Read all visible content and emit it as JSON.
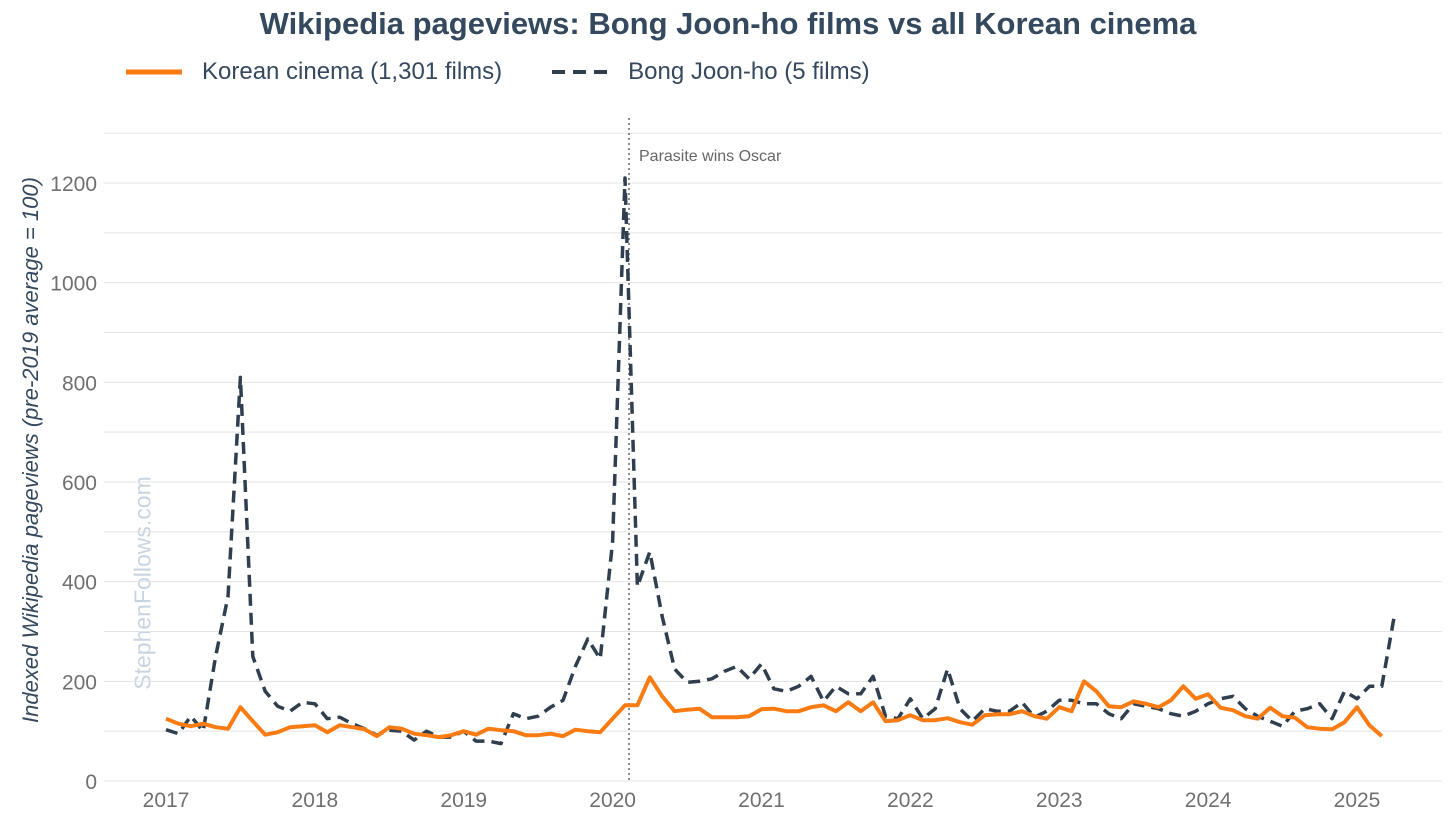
{
  "chart_data": {
    "type": "line",
    "title": "Wikipedia pageviews: Bong Joon-ho films vs all Korean cinema",
    "xlabel": "",
    "ylabel": "Indexed Wikipedia pageviews (pre-2019 average = 100)",
    "ylim": [
      0,
      1300
    ],
    "yticks": [
      0,
      200,
      400,
      600,
      800,
      1000,
      1200
    ],
    "xlim": [
      2016.75,
      2025.65
    ],
    "xticks": [
      2017,
      2018,
      2019,
      2020,
      2021,
      2022,
      2023,
      2024,
      2025
    ],
    "grid": true,
    "legend_position": "top-left",
    "watermark": "StephenFollows.com",
    "colors": {
      "korean": "#f97b12",
      "bong": "#2f3f4f",
      "text": "#34495e",
      "grid": "#e3e3e3",
      "tick": "#707070"
    },
    "annotation": {
      "x": 2020.11,
      "label": "Parasite wins Oscar"
    },
    "series": [
      {
        "name": "Korean cinema (1,301 films)",
        "style": "solid",
        "start_year": 2017.0,
        "step": 0.08333,
        "values": [
          125,
          115,
          110,
          115,
          108,
          105,
          148,
          120,
          93,
          98,
          108,
          110,
          112,
          98,
          112,
          108,
          104,
          90,
          108,
          105,
          95,
          92,
          88,
          92,
          100,
          93,
          105,
          102,
          100,
          92,
          92,
          95,
          90,
          103,
          100,
          98,
          125,
          152,
          152,
          208,
          170,
          140,
          143,
          145,
          128,
          128,
          128,
          130,
          144,
          145,
          140,
          140,
          148,
          152,
          140,
          158,
          140,
          158,
          120,
          122,
          132,
          122,
          122,
          126,
          118,
          113,
          132,
          134,
          134,
          140,
          130,
          125,
          148,
          140,
          200,
          180,
          150,
          148,
          160,
          155,
          148,
          162,
          190,
          165,
          174,
          147,
          142,
          130,
          125,
          147,
          130,
          127,
          108,
          105,
          104,
          118,
          148,
          112,
          90
        ]
      },
      {
        "name": "Bong Joon-ho (5 films)",
        "style": "dashed",
        "start_year": 2017.0,
        "step": 0.08333,
        "values": [
          103,
          95,
          130,
          100,
          250,
          370,
          810,
          250,
          180,
          150,
          140,
          158,
          155,
          125,
          128,
          115,
          105,
          92,
          102,
          100,
          82,
          100,
          88,
          88,
          100,
          80,
          80,
          75,
          135,
          125,
          130,
          148,
          162,
          230,
          285,
          245,
          480,
          1210,
          390,
          460,
          330,
          225,
          198,
          200,
          205,
          220,
          230,
          205,
          235,
          185,
          180,
          190,
          210,
          160,
          190,
          175,
          175,
          210,
          130,
          125,
          165,
          125,
          145,
          225,
          145,
          120,
          145,
          140,
          140,
          158,
          128,
          140,
          162,
          162,
          155,
          155,
          135,
          125,
          155,
          150,
          145,
          135,
          130,
          140,
          155,
          165,
          170,
          145,
          130,
          120,
          110,
          140,
          145,
          155,
          125,
          180,
          165,
          190,
          190,
          330
        ]
      }
    ]
  }
}
